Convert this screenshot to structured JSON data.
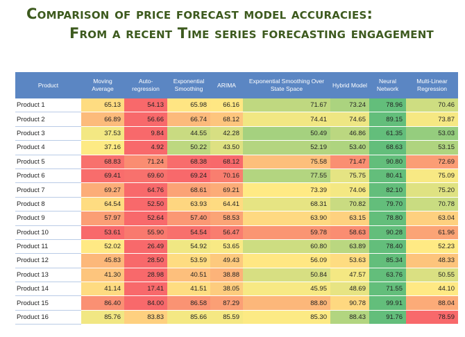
{
  "title_line1": "Comparison of price forecast model accuracies:",
  "title_line2": "From a recent Time series forecasting engagement",
  "chart_data": {
    "type": "table",
    "first_column_header": "Product",
    "columns": [
      "Moving Average",
      "Auto-regression",
      "Exponential Smoothing",
      "ARIMA",
      "Exponential Smoothing Over State Space",
      "Hybrid Model",
      "Neural Network",
      "Multi-Linear Regression"
    ],
    "rows": [
      {
        "name": "Product 1",
        "values": [
          65.13,
          54.13,
          65.98,
          66.16,
          71.67,
          73.24,
          78.96,
          70.46
        ]
      },
      {
        "name": "Product 2",
        "values": [
          66.89,
          56.66,
          66.74,
          68.12,
          74.41,
          74.65,
          89.15,
          73.87
        ]
      },
      {
        "name": "Product 3",
        "values": [
          37.53,
          9.84,
          44.55,
          42.28,
          50.49,
          46.86,
          61.35,
          53.03
        ]
      },
      {
        "name": "Product 4",
        "values": [
          37.16,
          4.92,
          50.22,
          43.5,
          52.19,
          53.4,
          68.63,
          53.15
        ]
      },
      {
        "name": "Product 5",
        "values": [
          68.83,
          71.24,
          68.38,
          68.12,
          75.58,
          71.47,
          90.8,
          72.69
        ]
      },
      {
        "name": "Product 6",
        "values": [
          69.41,
          69.6,
          69.24,
          70.16,
          77.55,
          75.75,
          80.41,
          75.09
        ]
      },
      {
        "name": "Product 7",
        "values": [
          69.27,
          64.76,
          68.61,
          69.21,
          73.39,
          74.06,
          82.1,
          75.2
        ]
      },
      {
        "name": "Product 8",
        "values": [
          64.54,
          52.5,
          63.93,
          64.41,
          68.31,
          70.82,
          79.7,
          70.78
        ]
      },
      {
        "name": "Product 9",
        "values": [
          57.97,
          52.64,
          57.4,
          58.53,
          63.9,
          63.15,
          78.8,
          63.04
        ]
      },
      {
        "name": "Product 10",
        "values": [
          53.61,
          55.9,
          54.54,
          56.47,
          59.78,
          58.63,
          90.28,
          61.96
        ]
      },
      {
        "name": "Product 11",
        "values": [
          52.02,
          26.49,
          54.92,
          53.65,
          60.8,
          63.89,
          78.4,
          52.23
        ]
      },
      {
        "name": "Product 12",
        "values": [
          45.83,
          28.5,
          53.59,
          49.43,
          56.09,
          53.63,
          85.34,
          48.33
        ]
      },
      {
        "name": "Product 13",
        "values": [
          41.3,
          28.98,
          40.51,
          38.88,
          50.84,
          47.57,
          63.76,
          50.55
        ]
      },
      {
        "name": "Product 14",
        "values": [
          41.14,
          17.41,
          41.51,
          38.05,
          45.95,
          48.69,
          71.55,
          44.1
        ]
      },
      {
        "name": "Product 15",
        "values": [
          86.4,
          84.0,
          86.58,
          87.29,
          88.8,
          90.78,
          99.91,
          88.04
        ]
      },
      {
        "name": "Product 16",
        "values": [
          85.76,
          83.83,
          85.66,
          85.59,
          85.3,
          88.43,
          91.76,
          78.59
        ]
      }
    ],
    "color_scale": {
      "low": "#f8696b",
      "mid": "#ffeb84",
      "high": "#63be7b",
      "scope": "per row"
    }
  }
}
